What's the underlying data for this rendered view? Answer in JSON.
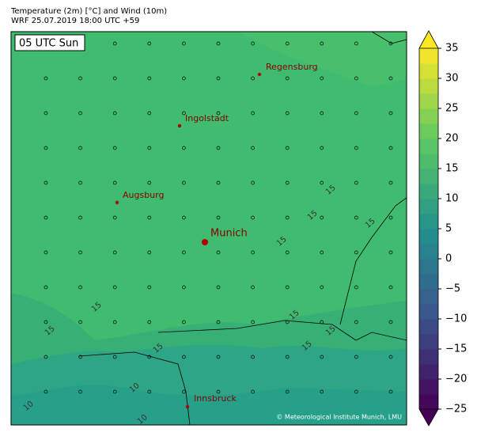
{
  "header": {
    "title": "Temperature (2m) [°C] and Wind (10m)",
    "subtitle": "WRF 25.07.2019 18:00 UTC +59"
  },
  "map": {
    "time_label": "05 UTC Sun",
    "cities": [
      "Regensburg",
      "Ingolstadt",
      "Augsburg",
      "Munich",
      "Innsbruck"
    ],
    "contour_labels": [
      15,
      15,
      15,
      15,
      15,
      15,
      15,
      15,
      15,
      15,
      10,
      10,
      10
    ],
    "credit": "© Meteorological Institute Munich, LMU"
  },
  "colorbar": {
    "lim": [
      -25,
      35
    ],
    "colormap": [
      "#440154",
      "#3b528b",
      "#21918c",
      "#5ec962",
      "#fde725"
    ],
    "ticks": [
      {
        "value": -25,
        "label": "−25"
      },
      {
        "value": -20,
        "label": "−20"
      },
      {
        "value": -15,
        "label": "−15"
      },
      {
        "value": -10,
        "label": "−10"
      },
      {
        "value": -5,
        "label": "−5"
      },
      0,
      5,
      10,
      15,
      20,
      25,
      30,
      35
    ]
  }
}
